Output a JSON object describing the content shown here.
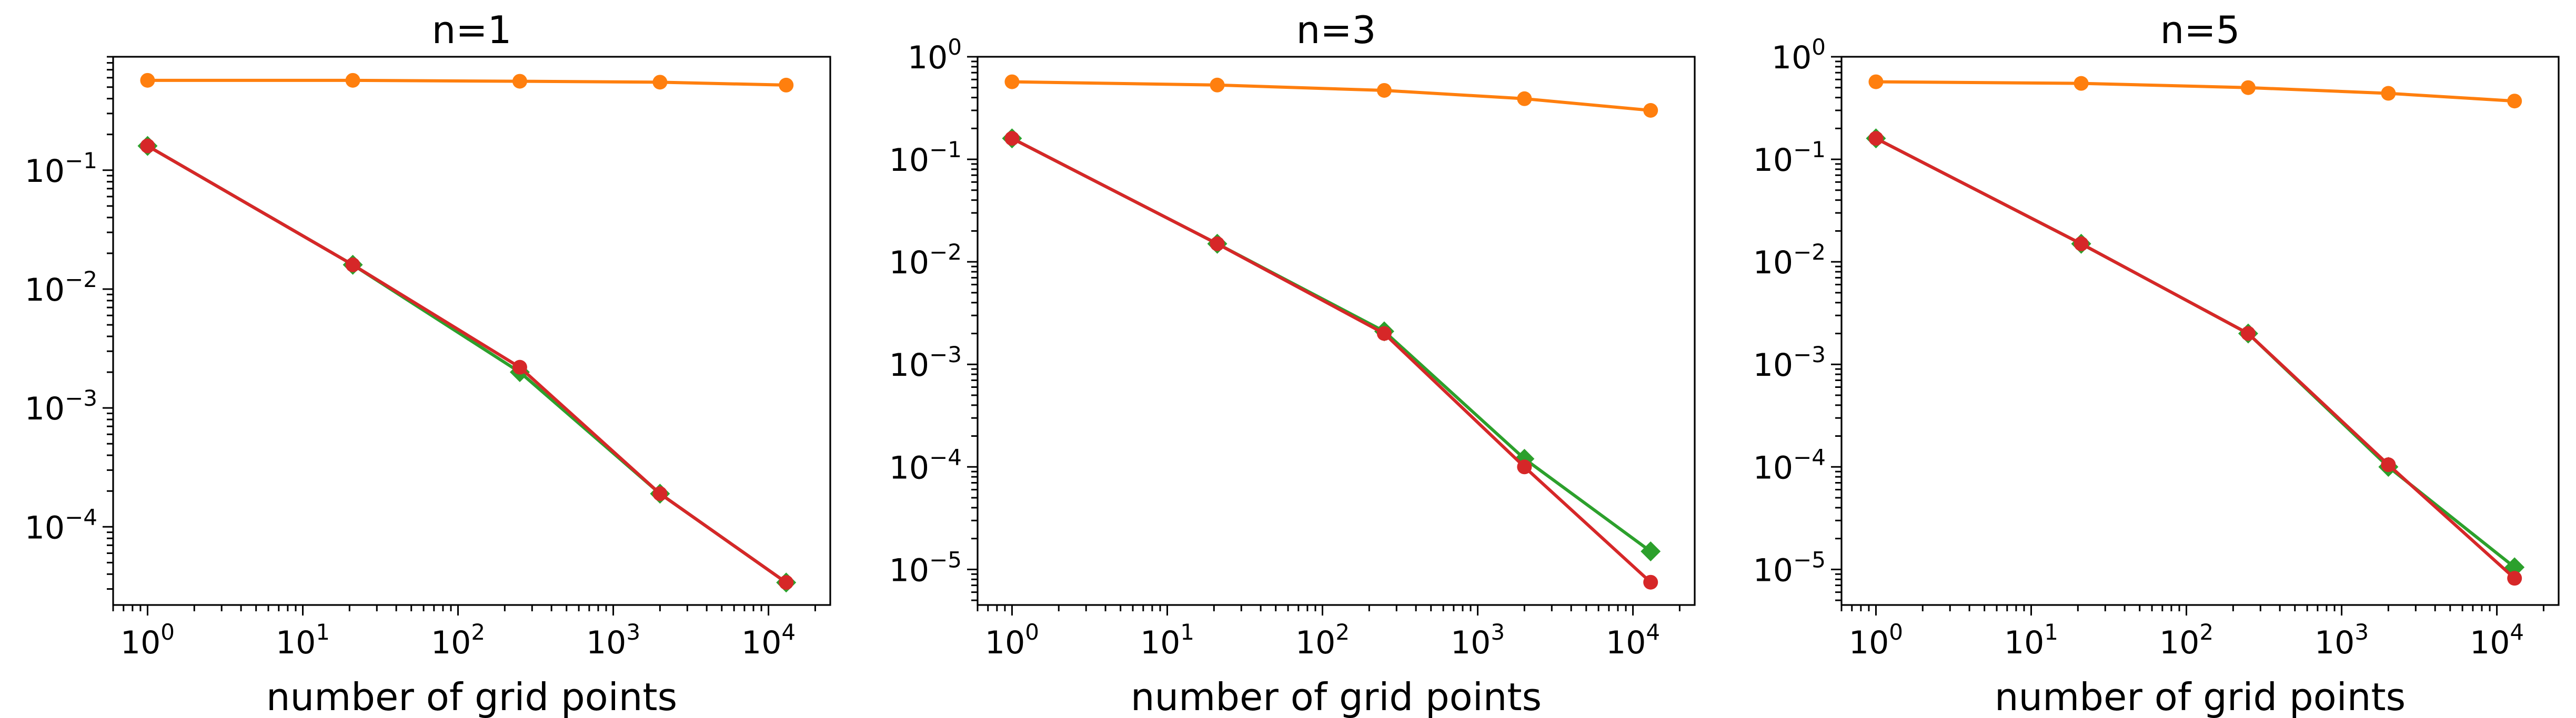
{
  "chart_data": [
    {
      "type": "line",
      "title": "n=1",
      "xlabel": "number of grid points",
      "ylabel": "",
      "xscale": "log",
      "yscale": "log",
      "xlim": [
        0.6,
        25000
      ],
      "ylim": [
        2.2e-05,
        0.9
      ],
      "xticks": [
        {
          "label_base": "10",
          "label_exp": "0",
          "value": 1
        },
        {
          "label_base": "10",
          "label_exp": "1",
          "value": 10
        },
        {
          "label_base": "10",
          "label_exp": "2",
          "value": 100
        },
        {
          "label_base": "10",
          "label_exp": "3",
          "value": 1000
        },
        {
          "label_base": "10",
          "label_exp": "4",
          "value": 10000
        }
      ],
      "yticks": [
        {
          "label_base": "10",
          "label_exp": "−1",
          "value": 0.1
        },
        {
          "label_base": "10",
          "label_exp": "−2",
          "value": 0.01
        },
        {
          "label_base": "10",
          "label_exp": "−3",
          "value": 0.001
        },
        {
          "label_base": "10",
          "label_exp": "−4",
          "value": 0.0001
        }
      ],
      "x": [
        1,
        21,
        250,
        2000,
        13000
      ],
      "series": [
        {
          "color": "#ff7f0e",
          "marker": "circle",
          "values": [
            0.57,
            0.57,
            0.56,
            0.55,
            0.52
          ]
        },
        {
          "color": "#2ca02c",
          "marker": "diamond",
          "values": [
            0.16,
            0.016,
            0.002,
            0.00019,
            3.4e-05
          ]
        },
        {
          "color": "#d62728",
          "marker": "circle",
          "values": [
            0.16,
            0.016,
            0.0022,
            0.00019,
            3.4e-05
          ]
        }
      ]
    },
    {
      "type": "line",
      "title": "n=3",
      "xlabel": "number of grid points",
      "ylabel": "",
      "xscale": "log",
      "yscale": "log",
      "xlim": [
        0.6,
        25000
      ],
      "ylim": [
        4.5e-06,
        1.0
      ],
      "xticks": [
        {
          "label_base": "10",
          "label_exp": "0",
          "value": 1
        },
        {
          "label_base": "10",
          "label_exp": "1",
          "value": 10
        },
        {
          "label_base": "10",
          "label_exp": "2",
          "value": 100
        },
        {
          "label_base": "10",
          "label_exp": "3",
          "value": 1000
        },
        {
          "label_base": "10",
          "label_exp": "4",
          "value": 10000
        }
      ],
      "yticks": [
        {
          "label_base": "10",
          "label_exp": "0",
          "value": 1
        },
        {
          "label_base": "10",
          "label_exp": "−1",
          "value": 0.1
        },
        {
          "label_base": "10",
          "label_exp": "−2",
          "value": 0.01
        },
        {
          "label_base": "10",
          "label_exp": "−3",
          "value": 0.001
        },
        {
          "label_base": "10",
          "label_exp": "−4",
          "value": 0.0001
        },
        {
          "label_base": "10",
          "label_exp": "−5",
          "value": 1e-05
        }
      ],
      "x": [
        1,
        21,
        250,
        2000,
        13000
      ],
      "series": [
        {
          "color": "#ff7f0e",
          "marker": "circle",
          "values": [
            0.57,
            0.53,
            0.47,
            0.39,
            0.3
          ]
        },
        {
          "color": "#2ca02c",
          "marker": "diamond",
          "values": [
            0.16,
            0.015,
            0.0021,
            0.00012,
            1.5e-05
          ]
        },
        {
          "color": "#d62728",
          "marker": "circle",
          "values": [
            0.16,
            0.015,
            0.002,
            0.0001,
            7.5e-06
          ]
        }
      ]
    },
    {
      "type": "line",
      "title": "n=5",
      "xlabel": "number of grid points",
      "ylabel": "",
      "xscale": "log",
      "yscale": "log",
      "xlim": [
        0.6,
        25000
      ],
      "ylim": [
        4.5e-06,
        1.0
      ],
      "xticks": [
        {
          "label_base": "10",
          "label_exp": "0",
          "value": 1
        },
        {
          "label_base": "10",
          "label_exp": "1",
          "value": 10
        },
        {
          "label_base": "10",
          "label_exp": "2",
          "value": 100
        },
        {
          "label_base": "10",
          "label_exp": "3",
          "value": 1000
        },
        {
          "label_base": "10",
          "label_exp": "4",
          "value": 10000
        }
      ],
      "yticks": [
        {
          "label_base": "10",
          "label_exp": "0",
          "value": 1
        },
        {
          "label_base": "10",
          "label_exp": "−1",
          "value": 0.1
        },
        {
          "label_base": "10",
          "label_exp": "−2",
          "value": 0.01
        },
        {
          "label_base": "10",
          "label_exp": "−3",
          "value": 0.001
        },
        {
          "label_base": "10",
          "label_exp": "−4",
          "value": 0.0001
        },
        {
          "label_base": "10",
          "label_exp": "−5",
          "value": 1e-05
        }
      ],
      "x": [
        1,
        21,
        250,
        2000,
        13000
      ],
      "series": [
        {
          "color": "#ff7f0e",
          "marker": "circle",
          "values": [
            0.57,
            0.55,
            0.5,
            0.44,
            0.37
          ]
        },
        {
          "color": "#2ca02c",
          "marker": "diamond",
          "values": [
            0.16,
            0.015,
            0.002,
            0.0001,
            1.05e-05
          ]
        },
        {
          "color": "#d62728",
          "marker": "circle",
          "values": [
            0.16,
            0.015,
            0.002,
            0.000105,
            8.2e-06
          ]
        }
      ]
    }
  ]
}
